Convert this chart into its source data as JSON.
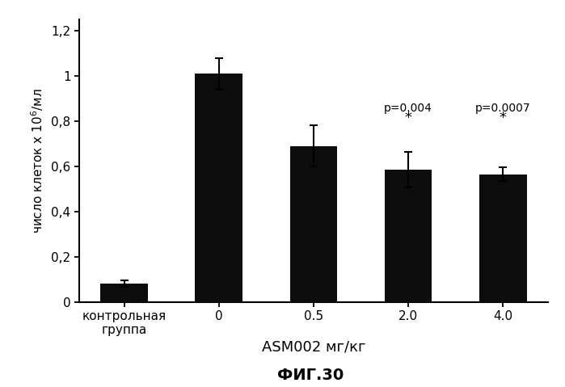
{
  "categories": [
    "контрольная\nгруппа",
    "0",
    "0.5",
    "2.0",
    "4.0"
  ],
  "values": [
    0.08,
    1.01,
    0.69,
    0.585,
    0.565
  ],
  "errors": [
    0.015,
    0.07,
    0.09,
    0.08,
    0.03
  ],
  "bar_color": "#0d0d0d",
  "background_color": "#ffffff",
  "ylabel": "число клеток х 10$^6$/мл",
  "xlabel": "ASM002 мг/кг",
  "subtitle": "ФИГ.30",
  "ylim": [
    0,
    1.25
  ],
  "yticks": [
    0,
    0.2,
    0.4,
    0.6,
    0.8,
    1.0,
    1.2
  ],
  "ytick_labels": [
    "0",
    "0,2",
    "0,4",
    "0,6",
    "0,8",
    "1",
    "1,2"
  ],
  "ann1_label": "p=0.004",
  "ann1_star": "*",
  "ann2_label": "p=0.0007",
  "ann2_star": "*",
  "ann_fontsize": 10,
  "bar_width": 0.5,
  "tick_fontsize": 11,
  "ylabel_fontsize": 11,
  "xlabel_fontsize": 13,
  "subtitle_fontsize": 14
}
